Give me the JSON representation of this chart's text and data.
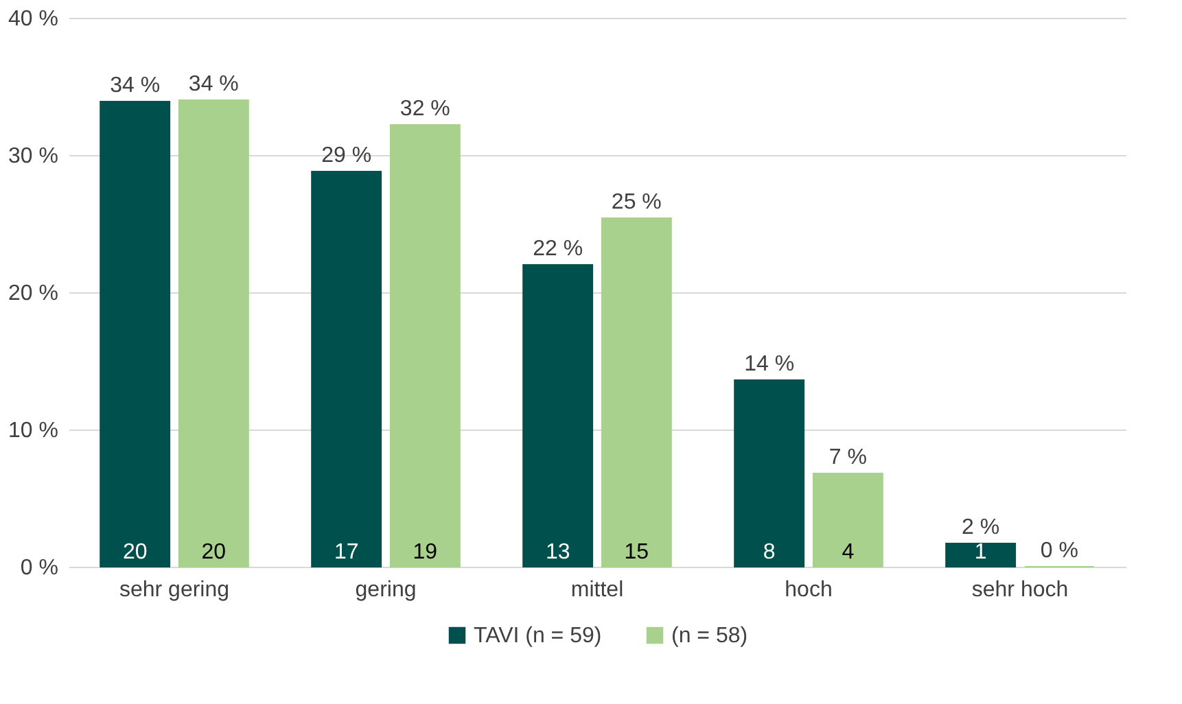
{
  "chart_data": {
    "type": "bar",
    "categories": [
      "sehr gering",
      "gering",
      "mittel",
      "hoch",
      "sehr hoch"
    ],
    "series": [
      {
        "name": "TAVI (n = 59)",
        "color": "#00504e",
        "values": [
          33.9,
          28.8,
          22.0,
          13.6,
          1.7
        ],
        "value_labels": [
          "34 %",
          "29 %",
          "22 %",
          "14 %",
          "2 %"
        ]
      },
      {
        "name": "(n = 58)",
        "color": "#a9d18e",
        "values": [
          34.0,
          32.2,
          25.4,
          6.8,
          0
        ],
        "value_labels": [
          "34 %",
          "32 %",
          "25 %",
          "7 %",
          "0 %"
        ]
      }
    ],
    "ylim": [
      0,
      40
    ],
    "yticks": [
      {
        "value": 0,
        "label": "0 %"
      },
      {
        "value": 10,
        "label": "10 %"
      },
      {
        "value": 20,
        "label": "20 %"
      },
      {
        "value": 30,
        "label": "30 %"
      },
      {
        "value": 40,
        "label": "40 %"
      }
    ],
    "grid": "y",
    "legend": "bottom",
    "annotations": [
      {
        "text": "20",
        "x": "sehr gering",
        "y": 0
      },
      {
        "text": "20",
        "x": "sehr gering",
        "y": 0
      },
      {
        "text": "17",
        "x": "gering",
        "y": 0
      },
      {
        "text": "19",
        "x": "gering",
        "y": 0
      },
      {
        "text": "13",
        "x": "mittel",
        "y": 0
      },
      {
        "text": "15",
        "x": "mittel",
        "y": 0
      },
      {
        "text": "8",
        "x": "hoch",
        "y": 0
      },
      {
        "text": "4",
        "x": "hoch",
        "y": 0
      },
      {
        "text": "1",
        "x": "sehr hoch",
        "y": 0
      }
    ]
  }
}
